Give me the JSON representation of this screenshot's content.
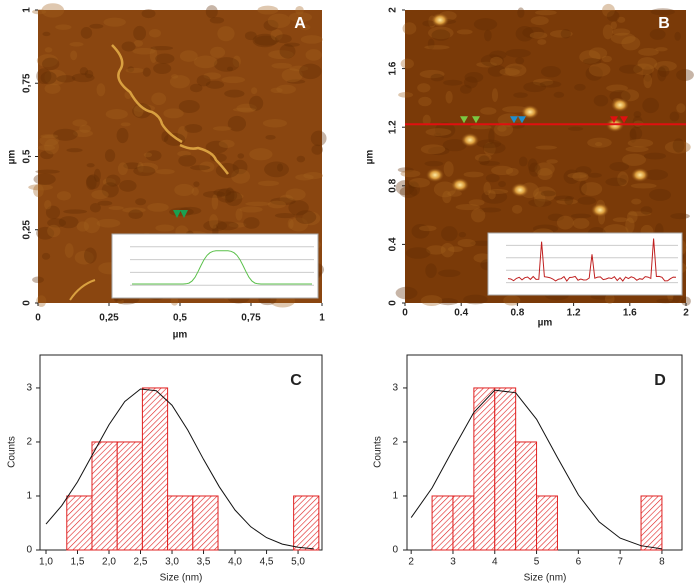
{
  "chart_data": [
    {
      "type": "image",
      "panel": "A",
      "xlabel": "µm",
      "ylabel": "µm",
      "xlim": [
        0,
        1
      ],
      "ylim": [
        0,
        1
      ],
      "xticks": [
        0,
        {
          "value": 0.25,
          "label": "0,25"
        },
        {
          "value": 0.5,
          "label": "0,5"
        },
        {
          "value": 0.75,
          "label": "0,75"
        },
        1
      ],
      "yticks": [
        0,
        {
          "value": 0.25,
          "label": "0,25"
        },
        {
          "value": 0.5,
          "label": "0,5"
        },
        {
          "value": 0.75,
          "label": "0,75"
        },
        1
      ]
    },
    {
      "type": "image",
      "panel": "B",
      "xlabel": "µm",
      "ylabel": "µm",
      "xlim": [
        0,
        2
      ],
      "ylim": [
        0,
        2
      ],
      "xticks": [
        0,
        0.4,
        0.8,
        1.2,
        1.6,
        2
      ],
      "yticks": [
        0,
        0.4,
        0.8,
        1.2,
        1.6,
        2
      ],
      "profile_line_y": 1.22,
      "profile_color": "#e01010"
    },
    {
      "type": "histogram",
      "panel": "C",
      "xlabel": "Size (nm)",
      "ylabel": "Counts",
      "color": "#e02020",
      "bins": [
        1.33,
        1.73,
        2.13,
        2.53,
        2.93,
        3.33,
        3.73,
        4.13,
        4.53,
        4.93,
        5.33
      ],
      "values": [
        1,
        2,
        2,
        3,
        1,
        1,
        0,
        0,
        0,
        1
      ],
      "xlim": [
        0.905,
        5.38
      ],
      "ylim": [
        0,
        3.61
      ],
      "xticks": [
        {
          "value": 1,
          "label": "1,0"
        },
        {
          "value": 1.5,
          "label": "1,5"
        },
        {
          "value": 2,
          "label": "2,0"
        },
        {
          "value": 2.5,
          "label": "2,5"
        },
        {
          "value": 3,
          "label": "3,0"
        },
        {
          "value": 3.5,
          "label": "3,5"
        },
        {
          "value": 4,
          "label": "4,0"
        },
        {
          "value": 4.5,
          "label": "4,5"
        },
        {
          "value": 5,
          "label": "5,0"
        }
      ],
      "yticks": [
        0,
        1,
        2,
        3
      ],
      "fit": {
        "x": [
          1.0,
          1.25,
          1.5,
          1.75,
          2.0,
          2.25,
          2.5,
          2.75,
          3.0,
          3.25,
          3.5,
          3.75,
          4.0,
          4.25,
          4.5,
          4.75,
          5.0,
          5.25
        ],
        "values": [
          0.48,
          0.82,
          1.26,
          1.79,
          2.32,
          2.75,
          2.98,
          2.95,
          2.68,
          2.22,
          1.68,
          1.17,
          0.74,
          0.43,
          0.23,
          0.11,
          0.05,
          0.02
        ]
      }
    },
    {
      "type": "histogram",
      "panel": "D",
      "xlabel": "Size (nm)",
      "ylabel": "Counts",
      "color": "#e02020",
      "bins": [
        2.5,
        3,
        3.5,
        4,
        4.5,
        5,
        5.5,
        6,
        6.5,
        7,
        7.5,
        8
      ],
      "values": [
        1,
        1,
        3,
        3,
        2,
        1,
        0,
        0,
        0,
        0,
        1
      ],
      "xlim": [
        1.9,
        8.48
      ],
      "ylim": [
        0,
        3.61
      ],
      "xticks": [
        2,
        3,
        4,
        5,
        6,
        7,
        8
      ],
      "yticks": [
        0,
        1,
        2,
        3
      ],
      "fit": {
        "x": [
          2.0,
          2.5,
          3.0,
          3.5,
          4.0,
          4.5,
          5.0,
          5.5,
          6.0,
          6.5,
          7.0,
          7.5,
          8.0
        ],
        "values": [
          0.6,
          1.15,
          1.86,
          2.55,
          2.96,
          2.91,
          2.42,
          1.71,
          1.02,
          0.52,
          0.22,
          0.08,
          0.02
        ]
      }
    }
  ]
}
